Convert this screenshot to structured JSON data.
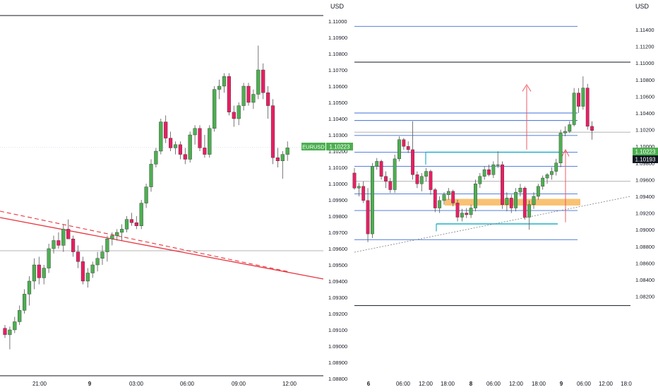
{
  "colors": {
    "up": "#4caf50",
    "down": "#e91e63",
    "level": "#3f6fd8",
    "cyan": "#22b0c9",
    "zone": "#f8b75a",
    "trend": "#e8333d",
    "arrow": "#ef5b61",
    "axis_text": "#131722",
    "sep": "#131722",
    "dotted": "#888888",
    "gray_line": "#9a9a9a"
  },
  "left_chart": {
    "currency": "USD",
    "symbol": "EURUSD",
    "price_label": "1.10223",
    "y_ticks": [
      "1.11000",
      "1.10900",
      "1.10800",
      "1.10700",
      "1.10600",
      "1.10500",
      "1.10400",
      "1.10300",
      "1.10200",
      "1.10100",
      "1.10000",
      "1.09900",
      "1.09800",
      "1.09700",
      "1.09600",
      "1.09500",
      "1.09400",
      "1.09300",
      "1.09200",
      "1.09100",
      "1.09000",
      "1.08900",
      "1.08800"
    ],
    "x_ticks": [
      "21:00",
      "9",
      "03:00",
      "06:00",
      "09:00",
      "12:00"
    ],
    "x_bold": "9"
  },
  "right_chart": {
    "currency": "USD",
    "price_label": "1.10223",
    "close_label": "1.10193",
    "y_ticks": [
      "1.11400",
      "1.11200",
      "1.11000",
      "1.10800",
      "1.10600",
      "1.10400",
      "1.10200",
      "1.10000",
      "1.09800",
      "1.09600",
      "1.09400",
      "1.09200",
      "1.09000",
      "1.08800",
      "1.08600",
      "1.08400",
      "1.08200"
    ],
    "x_ticks": [
      "6",
      "06:00",
      "12:00",
      "18:00",
      "8",
      "06:00",
      "12:00",
      "18:00",
      "9",
      "06:00",
      "12:00",
      "18:0"
    ],
    "x_bold": [
      "6",
      "8",
      "9"
    ]
  },
  "chart_data": [
    {
      "type": "candlestick",
      "currency": "USD",
      "symbol": "EURUSD",
      "last_price": 1.10223,
      "ylim": [
        1.0877,
        1.1105
      ],
      "x_ticks": [
        "21:00",
        "9",
        "03:00",
        "06:00",
        "09:00",
        "12:00"
      ],
      "ohlc": [
        [
          1.0911,
          1.0913,
          1.0905,
          1.0907
        ],
        [
          1.0907,
          1.0912,
          1.0898,
          1.091
        ],
        [
          1.091,
          1.0918,
          1.0908,
          1.0915
        ],
        [
          1.0915,
          1.0925,
          1.0913,
          1.0922
        ],
        [
          1.0922,
          1.0935,
          1.092,
          1.0932
        ],
        [
          1.0932,
          1.0943,
          1.0925,
          1.094
        ],
        [
          1.094,
          1.0954,
          1.0935,
          1.095
        ],
        [
          1.095,
          1.0955,
          1.0938,
          1.0942
        ],
        [
          1.0942,
          1.095,
          1.0938,
          1.0948
        ],
        [
          1.0948,
          1.0963,
          1.0945,
          1.096
        ],
        [
          1.096,
          1.0968,
          1.0957,
          1.0965
        ],
        [
          1.0965,
          1.097,
          1.096,
          1.0962
        ],
        [
          1.0962,
          1.0975,
          1.0958,
          1.0972
        ],
        [
          1.0972,
          1.0978,
          1.0968,
          1.0966
        ],
        [
          1.0966,
          1.0968,
          1.0955,
          1.0958
        ],
        [
          1.0958,
          1.0962,
          1.0948,
          1.0952
        ],
        [
          1.0952,
          1.0955,
          1.0938,
          1.094
        ],
        [
          1.094,
          1.0948,
          1.0936,
          1.0945
        ],
        [
          1.0945,
          1.0952,
          1.0942,
          1.095
        ],
        [
          1.095,
          1.0958,
          1.0946,
          1.0954
        ],
        [
          1.0954,
          1.0962,
          1.095,
          1.0958
        ],
        [
          1.0958,
          1.0968,
          1.0952,
          1.0966
        ],
        [
          1.0966,
          1.097,
          1.0962,
          1.0968
        ],
        [
          1.0968,
          1.0972,
          1.0965,
          1.097
        ],
        [
          1.097,
          1.0975,
          1.0965,
          1.0972
        ],
        [
          1.0972,
          1.098,
          1.097,
          1.0978
        ],
        [
          1.0978,
          1.0982,
          1.0974,
          1.0976
        ],
        [
          1.0976,
          1.098,
          1.0972,
          1.0974
        ],
        [
          1.0974,
          1.099,
          1.0972,
          1.0988
        ],
        [
          1.0988,
          1.1,
          1.0985,
          1.0998
        ],
        [
          1.0998,
          1.1015,
          1.0995,
          1.1012
        ],
        [
          1.1012,
          1.1022,
          1.101,
          1.102
        ],
        [
          1.102,
          1.104,
          1.1018,
          1.1038
        ],
        [
          1.1038,
          1.1042,
          1.1025,
          1.1028
        ],
        [
          1.1028,
          1.1032,
          1.102,
          1.1022
        ],
        [
          1.1022,
          1.1026,
          1.1018,
          1.1024
        ],
        [
          1.1024,
          1.1026,
          1.1015,
          1.1018
        ],
        [
          1.1018,
          1.1022,
          1.1012,
          1.1015
        ],
        [
          1.1015,
          1.1032,
          1.1013,
          1.103
        ],
        [
          1.103,
          1.1036,
          1.1024,
          1.1034
        ],
        [
          1.1034,
          1.1036,
          1.102,
          1.1022
        ],
        [
          1.1022,
          1.103,
          1.1016,
          1.1018
        ],
        [
          1.1018,
          1.1036,
          1.1016,
          1.1034
        ],
        [
          1.1034,
          1.106,
          1.1032,
          1.1058
        ],
        [
          1.1058,
          1.1064,
          1.1052,
          1.106
        ],
        [
          1.106,
          1.1068,
          1.1056,
          1.1066
        ],
        [
          1.1066,
          1.1068,
          1.1042,
          1.1044
        ],
        [
          1.1044,
          1.1048,
          1.1035,
          1.104
        ],
        [
          1.104,
          1.105,
          1.1036,
          1.1048
        ],
        [
          1.1048,
          1.1062,
          1.1045,
          1.106
        ],
        [
          1.106,
          1.1062,
          1.1048,
          1.105
        ],
        [
          1.105,
          1.1058,
          1.1046,
          1.1055
        ],
        [
          1.1055,
          1.1085,
          1.1052,
          1.107
        ],
        [
          1.107,
          1.1074,
          1.1052,
          1.1056
        ],
        [
          1.1056,
          1.106,
          1.104,
          1.1048
        ],
        [
          1.1048,
          1.1052,
          1.1012,
          1.1016
        ],
        [
          1.1016,
          1.1022,
          1.101,
          1.1014
        ],
        [
          1.1014,
          1.102,
          1.1003,
          1.1018
        ],
        [
          1.1018,
          1.1026,
          1.1014,
          1.1022
        ]
      ]
    },
    {
      "type": "candlestick",
      "currency": "USD",
      "last_price": 1.10223,
      "close_price": 1.10193,
      "ylim": [
        1.0812,
        1.115
      ],
      "x_ticks": [
        "6",
        "06:00",
        "12:00",
        "18:00",
        "8",
        "06:00",
        "12:00",
        "18:00",
        "9",
        "06:00",
        "12:00",
        "18:0"
      ],
      "levels": [
        1.1144,
        1.104,
        1.1031,
        1.1013,
        1.0993,
        1.0976,
        1.0943,
        1.0923,
        1.0888
      ],
      "black_levels": [
        1.1101,
        1.0809
      ],
      "gray_levels": [
        1.1017,
        1.0958
      ],
      "zone": [
        1.0929,
        1.0937
      ],
      "ohlc": [
        [
          1.0968,
          1.0974,
          1.0948,
          1.095
        ],
        [
          1.095,
          1.0956,
          1.094,
          1.0952
        ],
        [
          1.0952,
          1.0958,
          1.0932,
          1.0935
        ],
        [
          1.0935,
          1.095,
          1.0885,
          1.0895
        ],
        [
          1.0895,
          1.098,
          1.089,
          1.0976
        ],
        [
          1.0976,
          1.0986,
          1.0972,
          1.0982
        ],
        [
          1.0982,
          1.0984,
          1.096,
          1.0964
        ],
        [
          1.0964,
          1.097,
          1.095,
          1.0958
        ],
        [
          1.0958,
          1.0962,
          1.0944,
          1.0948
        ],
        [
          1.0948,
          1.099,
          1.0944,
          1.0985
        ],
        [
          1.0985,
          1.1012,
          1.0982,
          1.1008
        ],
        [
          1.1008,
          1.101,
          1.0996,
          1.1
        ],
        [
          1.1,
          1.1006,
          1.0992,
          1.0996
        ],
        [
          1.0996,
          1.103,
          1.096,
          1.0966
        ],
        [
          1.0966,
          1.097,
          1.095,
          1.0955
        ],
        [
          1.0955,
          1.0968,
          1.0946,
          1.0964
        ],
        [
          1.0964,
          1.0974,
          1.0958,
          1.097
        ],
        [
          1.097,
          1.0972,
          1.0942,
          1.0948
        ],
        [
          1.0948,
          1.095,
          1.0921,
          1.0926
        ],
        [
          1.0926,
          1.094,
          1.092,
          1.0935
        ],
        [
          1.0935,
          1.0945,
          1.093,
          1.0942
        ],
        [
          1.0942,
          1.095,
          1.0936,
          1.0946
        ],
        [
          1.0946,
          1.0948,
          1.0928,
          1.0932
        ],
        [
          1.0932,
          1.0936,
          1.091,
          1.0915
        ],
        [
          1.0915,
          1.0925,
          1.091,
          1.092
        ],
        [
          1.092,
          1.0926,
          1.0914,
          1.0918
        ],
        [
          1.0918,
          1.093,
          1.0914,
          1.0926
        ],
        [
          1.0926,
          1.096,
          1.0922,
          1.0955
        ],
        [
          1.0955,
          1.0968,
          1.095,
          1.0964
        ],
        [
          1.0964,
          1.0976,
          1.096,
          1.0972
        ],
        [
          1.0972,
          1.0978,
          1.0964,
          1.0966
        ],
        [
          1.0966,
          1.0982,
          1.0962,
          1.0978
        ],
        [
          1.0978,
          1.0994,
          1.0974,
          1.0978
        ],
        [
          1.0978,
          1.0982,
          1.0925,
          1.093
        ],
        [
          1.093,
          1.0945,
          1.0922,
          1.0938
        ],
        [
          1.0938,
          1.0942,
          1.092,
          1.0926
        ],
        [
          1.0926,
          1.095,
          1.0922,
          1.0945
        ],
        [
          1.0945,
          1.0955,
          1.094,
          1.095
        ],
        [
          1.095,
          1.0952,
          1.0912,
          1.0915
        ],
        [
          1.0915,
          1.0935,
          1.09,
          1.093
        ],
        [
          1.093,
          1.0945,
          1.0925,
          1.094
        ],
        [
          1.094,
          1.0955,
          1.0936,
          1.0952
        ],
        [
          1.0952,
          1.0965,
          1.0948,
          1.0962
        ],
        [
          1.0962,
          1.0968,
          1.0955,
          1.0966
        ],
        [
          1.0966,
          1.0975,
          1.096,
          1.097
        ],
        [
          1.097,
          1.0985,
          1.0965,
          1.098
        ],
        [
          1.098,
          1.102,
          1.0975,
          1.1016
        ],
        [
          1.1016,
          1.1024,
          1.1012,
          1.1018
        ],
        [
          1.1018,
          1.103,
          1.1016,
          1.1026
        ],
        [
          1.1026,
          1.107,
          1.1024,
          1.1064
        ],
        [
          1.1064,
          1.107,
          1.104,
          1.1048
        ],
        [
          1.1048,
          1.1084,
          1.1044,
          1.107
        ],
        [
          1.107,
          1.1075,
          1.102,
          1.1024
        ],
        [
          1.1024,
          1.103,
          1.1008,
          1.1019
        ]
      ]
    }
  ]
}
